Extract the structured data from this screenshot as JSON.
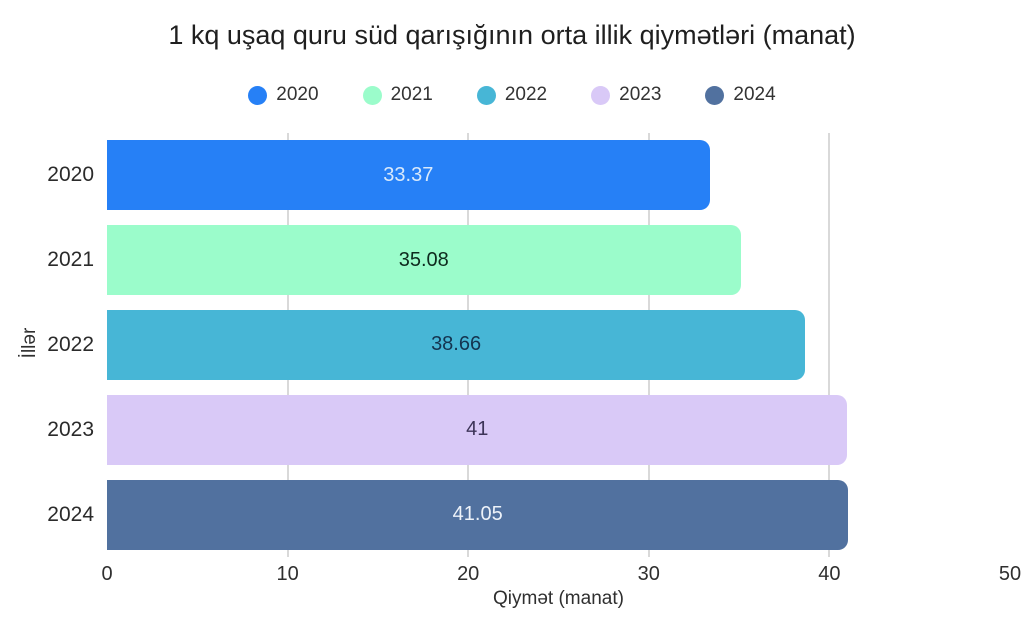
{
  "chart": {
    "title": "1 kq uşaq quru süd qarışığının orta illik qiymətləri (manat)",
    "xlabel": "Qiymət (manat)",
    "ylabel": "İllər"
  },
  "chart_data": {
    "type": "bar",
    "orientation": "horizontal",
    "title": "1 kq uşaq quru süd qarışığının orta illik qiymətləri (manat)",
    "xlabel": "Qiymət (manat)",
    "ylabel": "İllər",
    "categories": [
      "2020",
      "2021",
      "2022",
      "2023",
      "2024"
    ],
    "values": [
      33.37,
      35.08,
      38.66,
      41,
      41.05
    ],
    "value_labels": [
      "33.37",
      "35.08",
      "38.66",
      "41",
      "41.05"
    ],
    "xlim": [
      0,
      50
    ],
    "xticks": [
      0,
      10,
      20,
      30,
      40,
      50
    ],
    "gridlines": [
      10,
      20,
      30,
      40
    ],
    "grid": true,
    "legend_position": "top",
    "legend": [
      "2020",
      "2021",
      "2022",
      "2023",
      "2024"
    ],
    "bar_colors": [
      "#2680f6",
      "#9bfccb",
      "#47b6d6",
      "#d9c9f7",
      "#51719f"
    ],
    "value_label_colors": [
      "#d8e9fb",
      "#0e2a1e",
      "#143450",
      "#3d3458",
      "#edf2f9"
    ]
  }
}
